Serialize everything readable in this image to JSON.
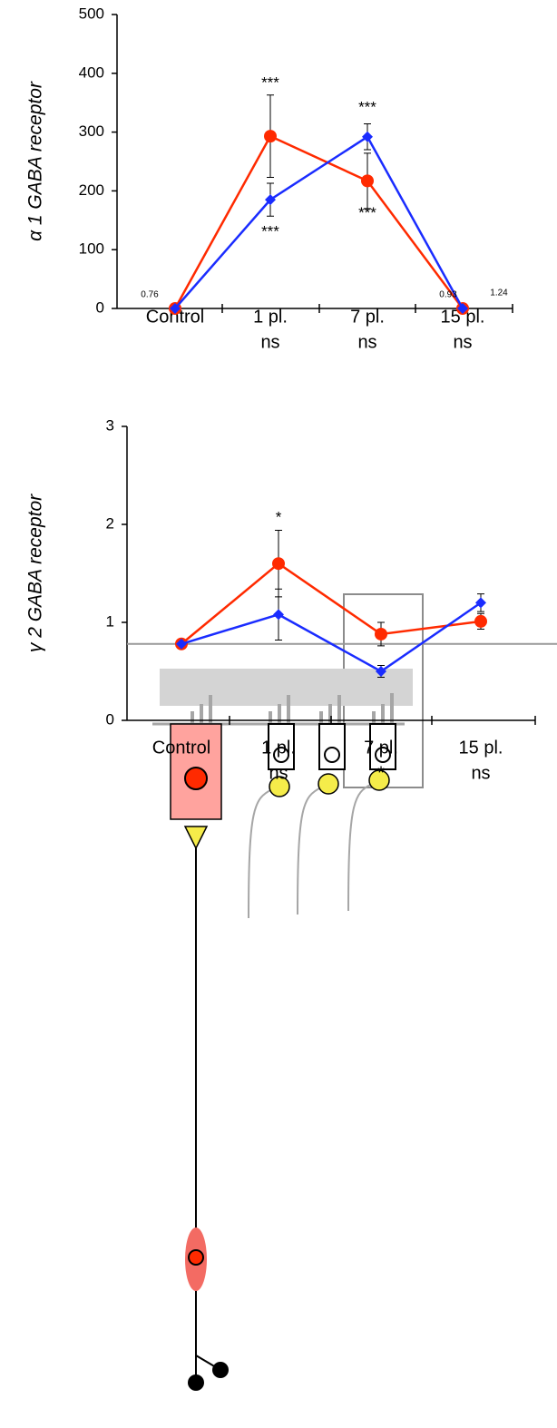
{
  "chart_data": [
    {
      "type": "line",
      "y_label": "α 1 GABA receptor",
      "categories": [
        "Control",
        "1 pl.",
        "7 pl.",
        "15 pl."
      ],
      "sublabels": [
        null,
        "ns",
        "ns",
        "ns"
      ],
      "ylim": [
        0,
        500
      ],
      "yticks": [
        0,
        100,
        200,
        300,
        400,
        500
      ],
      "series": [
        {
          "color": "#ff2a00",
          "marker": "circle",
          "values": [
            0,
            293,
            217,
            0
          ],
          "errors": [
            null,
            70,
            47,
            null
          ]
        },
        {
          "color": "#1a2cff",
          "marker": "diamond",
          "values": [
            0,
            185,
            292,
            0
          ],
          "errors": [
            null,
            28,
            22,
            null
          ]
        }
      ],
      "annotations": [
        "***",
        "***",
        "***",
        "***"
      ],
      "notes": [
        0.76,
        0.93,
        1.24
      ]
    },
    {
      "type": "line",
      "y_label": "γ 2 GABA receptor",
      "categories": [
        "Control",
        "1 pl.",
        "7 pl.",
        "15 pl."
      ],
      "sublabels": [
        null,
        "ns",
        "*",
        "ns"
      ],
      "ylim": [
        0,
        3
      ],
      "yticks": [
        0,
        1,
        2,
        3
      ],
      "reference_line": 0.78,
      "series": [
        {
          "color": "#ff2a00",
          "marker": "circle",
          "values": [
            0.78,
            1.6,
            0.88,
            1.01
          ],
          "errors": [
            null,
            0.34,
            0.12,
            0.08
          ]
        },
        {
          "color": "#1a2cff",
          "marker": "diamond",
          "values": [
            0.78,
            1.08,
            0.5,
            1.2
          ],
          "errors": [
            null,
            0.26,
            0.06,
            0.09
          ]
        }
      ],
      "annotations": [
        "*"
      ]
    }
  ]
}
